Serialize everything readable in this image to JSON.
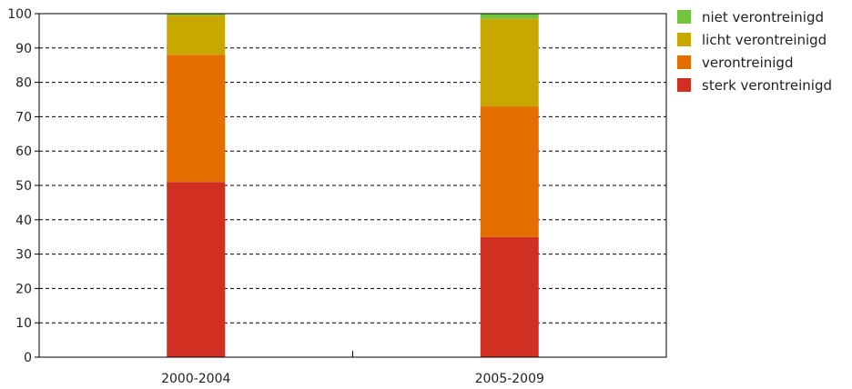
{
  "chart_data": {
    "type": "bar",
    "stacked": true,
    "categories": [
      "2000-2004",
      "2005-2009"
    ],
    "series": [
      {
        "name": "sterk verontreinigd",
        "color": "#d02f22",
        "values": [
          51,
          35
        ]
      },
      {
        "name": "verontreinigd",
        "color": "#e46e00",
        "values": [
          37,
          38
        ]
      },
      {
        "name": "licht verontreinigd",
        "color": "#c8a800",
        "values": [
          11.5,
          25.5
        ]
      },
      {
        "name": "niet verontreinigd",
        "color": "#72c33e",
        "values": [
          0.5,
          1.5
        ]
      }
    ],
    "ylim": [
      0,
      100
    ],
    "yticks": [
      0,
      10,
      20,
      30,
      40,
      50,
      60,
      70,
      80,
      90,
      100
    ],
    "grid": true,
    "legend_position": "right"
  }
}
